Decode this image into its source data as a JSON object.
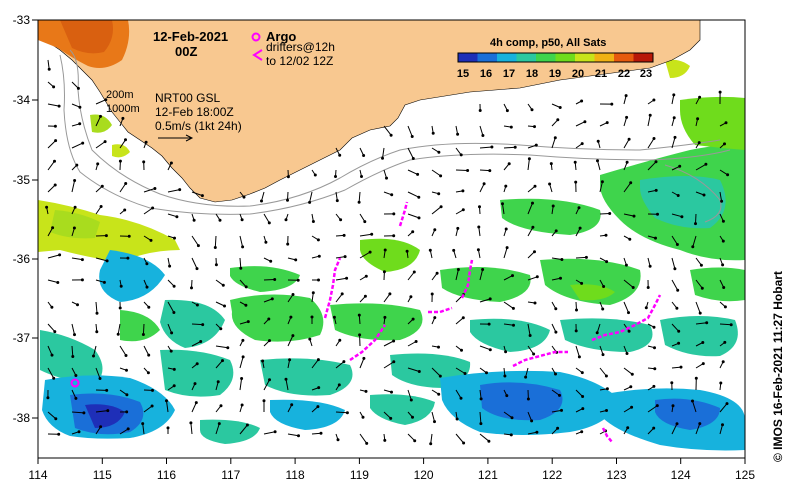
{
  "map": {
    "title_date": "12-Feb-2021",
    "title_time": "00Z",
    "legend_argo": "Argo",
    "legend_drifters_1": "drifters@12h",
    "legend_drifters_2": "to 12/02 12Z",
    "colorbar_title": "4h comp, p50, All Sats",
    "colorbar_ticks": [
      "15",
      "16",
      "17",
      "18",
      "19",
      "20",
      "21",
      "22",
      "23"
    ],
    "colorbar_colors": [
      "#1e2fb8",
      "#1a6fd8",
      "#17b2dd",
      "#2bc8a0",
      "#3fd44c",
      "#6fdc1c",
      "#c8e41a",
      "#f0b214",
      "#e65a0e",
      "#b81808"
    ],
    "isobath_1": "200m",
    "isobath_2": "1000m",
    "product": "NRT00 GSL",
    "product_time": "12-Feb 18:00Z",
    "vector_scale": "0.5m/s (1kt 24h)",
    "credit": "© IMOS 16-Feb-2021 11:27 Hobart",
    "x_ticks": [
      "114",
      "115",
      "116",
      "117",
      "118",
      "119",
      "120",
      "121",
      "122",
      "123",
      "124",
      "125"
    ],
    "y_ticks": [
      "-33",
      "-34",
      "-35",
      "-36",
      "-37",
      "-38"
    ],
    "land_color": "#f8c890",
    "drifter_color": "#ff00ff"
  }
}
